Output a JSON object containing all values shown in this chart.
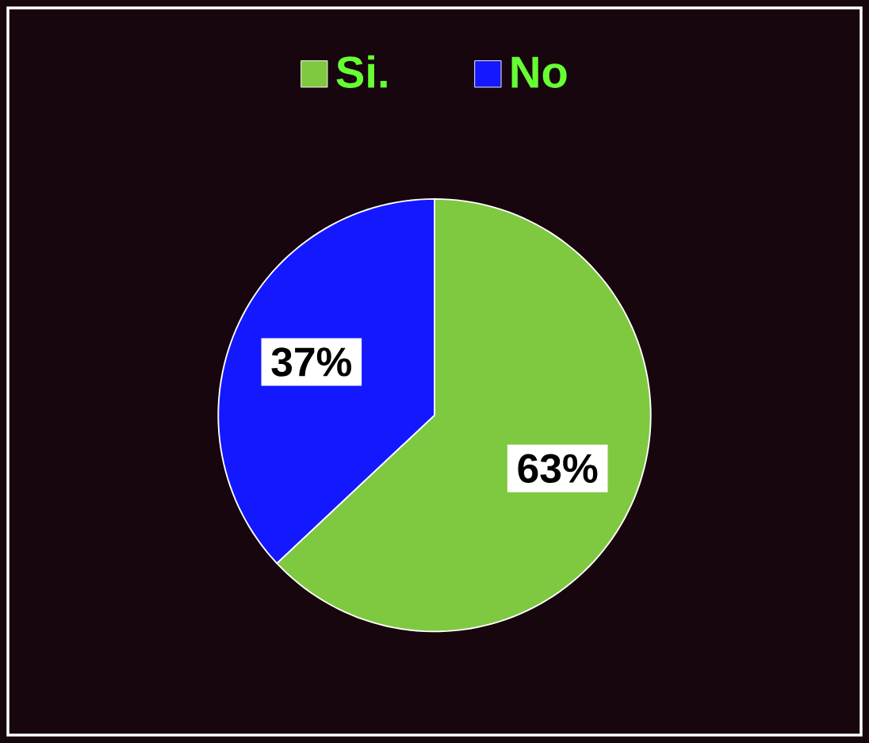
{
  "chart_data": {
    "type": "pie",
    "categories": [
      "Si.",
      "No"
    ],
    "values": [
      63,
      37
    ],
    "colors": [
      "#7ec940",
      "#1418ff"
    ],
    "value_labels": [
      "63%",
      "37%"
    ],
    "legend": "top"
  }
}
